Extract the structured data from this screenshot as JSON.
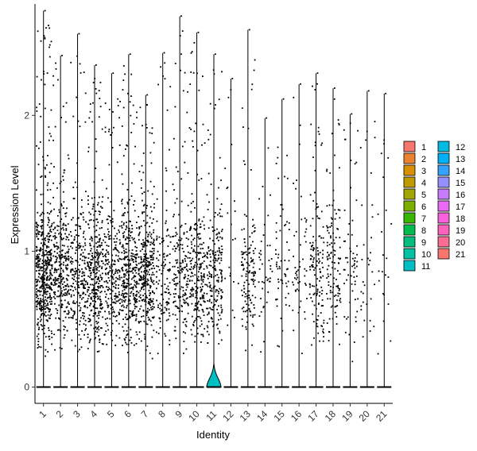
{
  "chart_data": {
    "type": "violin",
    "xlabel": "Identity",
    "ylabel": "Expression Level",
    "ylim": [
      -0.12,
      2.82
    ],
    "yticks": [
      0,
      1,
      2
    ],
    "categories": [
      "1",
      "2",
      "3",
      "4",
      "5",
      "6",
      "7",
      "8",
      "9",
      "10",
      "11",
      "12",
      "13",
      "14",
      "15",
      "16",
      "17",
      "18",
      "19",
      "20",
      "21"
    ],
    "max_values": [
      2.77,
      2.44,
      2.6,
      2.37,
      2.31,
      2.45,
      2.15,
      2.46,
      2.73,
      2.61,
      2.45,
      2.27,
      2.63,
      1.98,
      2.12,
      2.23,
      2.31,
      2.2,
      2.01,
      2.18,
      2.16
    ],
    "point_density": [
      1.0,
      0.55,
      0.45,
      0.65,
      0.45,
      0.65,
      0.65,
      0.22,
      0.35,
      0.45,
      0.4,
      0.02,
      0.25,
      0.06,
      0.1,
      0.08,
      0.25,
      0.22,
      0.1,
      0.04,
      0.02
    ],
    "violin_visible": [
      false,
      false,
      false,
      false,
      false,
      false,
      false,
      false,
      false,
      false,
      true,
      false,
      false,
      false,
      false,
      false,
      false,
      false,
      false,
      false,
      false
    ],
    "grid": false,
    "legend_position": "right",
    "legend_columns": 2,
    "colors": {
      "1": "#F8766D",
      "2": "#EA8331",
      "3": "#D89000",
      "4": "#C09B00",
      "5": "#A3A500",
      "6": "#7CAE00",
      "7": "#39B600",
      "8": "#00BB4E",
      "9": "#00BF7D",
      "10": "#00C1A3",
      "11": "#00BFC4",
      "12": "#00BAE0",
      "13": "#00B0F6",
      "14": "#35A2FF",
      "15": "#9590FF",
      "16": "#C77CFF",
      "17": "#E76BF3",
      "18": "#FA62DB",
      "19": "#FF62BC",
      "20": "#FF6C91",
      "21": "#F8766D"
    }
  }
}
